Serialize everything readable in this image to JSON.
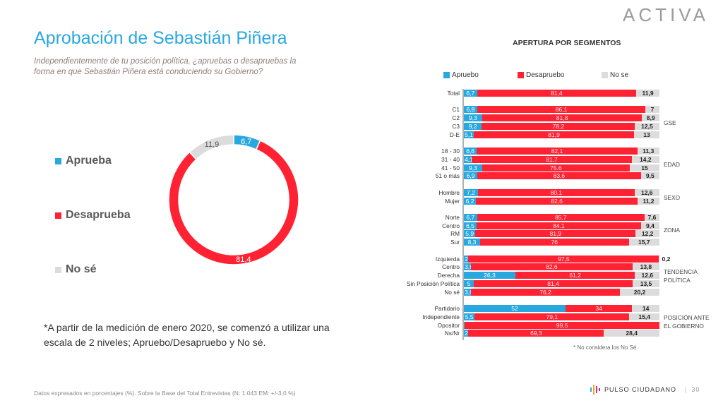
{
  "header": {
    "title": "Aprobación de Sebastián Piñera",
    "subtitle": "Independientemente de tu posición política, ¿apruebas o desapruebas la forma en que Sebastián Piñera está conduciendo su Gobierno?",
    "logo": "ACTIVA"
  },
  "colors": {
    "aprueba": "#29a8e0",
    "desaprueba": "#ff2233",
    "nose": "#dcdcdc"
  },
  "legend": [
    "Aprueba",
    "Desaprueba",
    "No sé"
  ],
  "note": "*A partir de la medición de enero 2020, se comenzó a utilizar una escala de 2 niveles; Apruebo/Desapruebo y No sé.",
  "footer": "Datos expresados en porcentajes (%). Sobre la Base del Total Entrevistas (N: 1.043  EM: +/-3,0 %)",
  "brand": {
    "name": "PULSO CIUDADANO",
    "page": "30"
  },
  "chart_data": [
    {
      "type": "pie",
      "title": "Aprobación de Sebastián Piñera",
      "labels": [
        "Aprueba",
        "Desaprueba",
        "No sé"
      ],
      "values": [
        6.7,
        81.4,
        11.9
      ],
      "value_labels": [
        "6,7",
        "81,4",
        "11,9"
      ]
    },
    {
      "type": "bar",
      "stacked": true,
      "orientation": "horizontal",
      "title": "APERTURA POR SEGMENTOS",
      "legend": [
        "Apruebo",
        "Desapruebo",
        "No se"
      ],
      "xlim": [
        0,
        100
      ],
      "footnote": "* No considera los No Sé",
      "groups": [
        {
          "label": "",
          "rows": [
            {
              "label": "Total",
              "values": [
                6.7,
                81.4,
                11.9
              ],
              "texts": [
                "6,7",
                "81,4",
                "11,9"
              ]
            }
          ]
        },
        {
          "label": "GSE",
          "rows": [
            {
              "label": "C1",
              "values": [
                6.8,
                86.1,
                7
              ],
              "texts": [
                "6,8",
                "86,1",
                "7"
              ]
            },
            {
              "label": "C2",
              "values": [
                9.3,
                81.8,
                8.9
              ],
              "texts": [
                "9,3",
                "81,8",
                "8,9"
              ]
            },
            {
              "label": "C3",
              "values": [
                9.2,
                78.2,
                12.5
              ],
              "texts": [
                "9,2",
                "78,2",
                "12,5"
              ]
            },
            {
              "label": "D-E",
              "values": [
                5.1,
                81.9,
                13
              ],
              "texts": [
                "5,1",
                "81,9",
                "13"
              ]
            }
          ]
        },
        {
          "label": "EDAD",
          "rows": [
            {
              "label": "18 - 30",
              "values": [
                6.6,
                82.1,
                11.3
              ],
              "texts": [
                "6,6",
                "82,1",
                "11,3"
              ]
            },
            {
              "label": "31 - 40",
              "values": [
                4.1,
                81.7,
                14.2
              ],
              "texts": [
                "4,1",
                "81,7",
                "14,2"
              ]
            },
            {
              "label": "41 - 50",
              "values": [
                9.3,
                75.6,
                15
              ],
              "texts": [
                "9,3",
                "75.6",
                "15"
              ]
            },
            {
              "label": "51 o más",
              "values": [
                6.9,
                83.6,
                9.5
              ],
              "texts": [
                "6,9",
                "83,6",
                "9,5"
              ]
            }
          ]
        },
        {
          "label": "SEXO",
          "rows": [
            {
              "label": "Hombre",
              "values": [
                7.2,
                80.1,
                12.6
              ],
              "texts": [
                "7,2",
                "80.1",
                "12,6"
              ]
            },
            {
              "label": "Mujer",
              "values": [
                6.2,
                82.6,
                11.2
              ],
              "texts": [
                "6,2",
                "82,6",
                "11,2"
              ]
            }
          ]
        },
        {
          "label": "ZONA",
          "rows": [
            {
              "label": "Norte",
              "values": [
                6.7,
                85.7,
                7.6
              ],
              "texts": [
                "6,7",
                "85,7",
                "7,6"
              ]
            },
            {
              "label": "Centro",
              "values": [
                6.5,
                84.1,
                9.4
              ],
              "texts": [
                "6,5",
                "84.1",
                "9,4"
              ]
            },
            {
              "label": "RM",
              "values": [
                5.9,
                81.9,
                12.2
              ],
              "texts": [
                "5,9",
                "81,9",
                "12,2"
              ]
            },
            {
              "label": "Sur",
              "values": [
                8.3,
                76,
                15.7
              ],
              "texts": [
                "8,3",
                "76",
                "15,7"
              ]
            }
          ]
        },
        {
          "label": "TENDENCIA POLÍTICA",
          "rows": [
            {
              "label": "Izquierda",
              "values": [
                2.3,
                97.5,
                0.2
              ],
              "texts": [
                "2,3",
                "97,5",
                "0,2"
              ]
            },
            {
              "label": "Centro",
              "values": [
                3.6,
                82.6,
                13.8
              ],
              "texts": [
                "3,6",
                "82,6",
                "13,8"
              ]
            },
            {
              "label": "Derecha",
              "values": [
                26.3,
                61.2,
                12.6
              ],
              "texts": [
                "26,3",
                "61,2",
                "12,6"
              ]
            },
            {
              "label": "Sin Posición Política",
              "values": [
                5,
                81.4,
                13.5
              ],
              "texts": [
                "5",
                "81,4",
                "13,5"
              ]
            },
            {
              "label": "No sé",
              "values": [
                3.6,
                76.2,
                20.2
              ],
              "texts": [
                "3,6",
                "76,2",
                "20,2"
              ]
            }
          ]
        },
        {
          "label": "POSICIÓN ANTE EL GOBIERNO",
          "rows": [
            {
              "label": "Partidario",
              "values": [
                52,
                34,
                14
              ],
              "texts": [
                "52",
                "34",
                "14"
              ]
            },
            {
              "label": "Independiente",
              "values": [
                5.5,
                79.1,
                15.4
              ],
              "texts": [
                "5,5",
                "79,1",
                "15,4"
              ]
            },
            {
              "label": "Opositor",
              "values": [
                0.5,
                99.5,
                0
              ],
              "texts": [
                "0,5",
                "99,5",
                ""
              ]
            },
            {
              "label": "Ns/Nr",
              "values": [
                2.3,
                69.3,
                28.4
              ],
              "texts": [
                "2,3",
                "69,3",
                "28,4"
              ]
            }
          ]
        }
      ]
    }
  ]
}
